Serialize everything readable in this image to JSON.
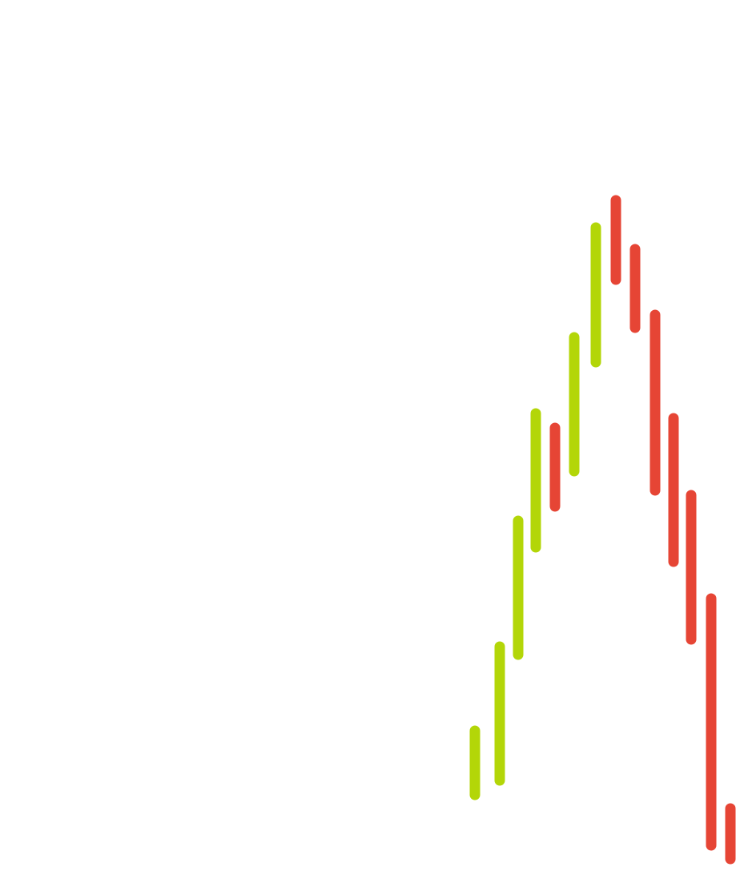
{
  "colors": {
    "background": "#ffffff",
    "up": "#b3d608",
    "down": "#e64535"
  },
  "chart_data": {
    "type": "candlestick",
    "grid": false,
    "legend": "none",
    "ylim": [
      0,
      1092
    ],
    "candles": [
      {
        "index": 0,
        "direction": "up",
        "low": 100,
        "high": 180
      },
      {
        "index": 1,
        "direction": "up",
        "low": 118,
        "high": 285
      },
      {
        "index": 2,
        "direction": "up",
        "low": 275,
        "high": 442
      },
      {
        "index": 3,
        "direction": "up",
        "low": 409,
        "high": 576
      },
      {
        "index": 4,
        "direction": "down",
        "low": 460,
        "high": 558
      },
      {
        "index": 5,
        "direction": "up",
        "low": 504,
        "high": 671
      },
      {
        "index": 6,
        "direction": "up",
        "low": 640,
        "high": 808
      },
      {
        "index": 7,
        "direction": "down",
        "low": 743,
        "high": 842
      },
      {
        "index": 8,
        "direction": "down",
        "low": 683,
        "high": 781
      },
      {
        "index": 9,
        "direction": "down",
        "low": 480,
        "high": 699
      },
      {
        "index": 10,
        "direction": "down",
        "low": 391,
        "high": 570
      },
      {
        "index": 11,
        "direction": "down",
        "low": 294,
        "high": 474
      },
      {
        "index": 12,
        "direction": "down",
        "low": 37,
        "high": 345
      },
      {
        "index": 13,
        "direction": "down",
        "low": 20,
        "high": 83
      }
    ]
  }
}
